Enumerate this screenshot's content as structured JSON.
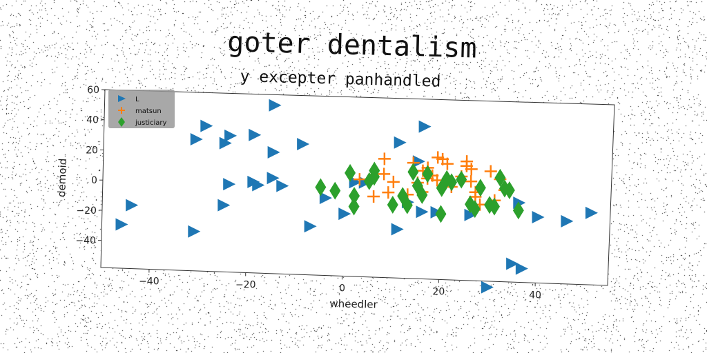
{
  "chart_data": {
    "type": "scatter",
    "title": "goter dentalism",
    "subtitle": "y excepter panhandled",
    "xlabel": "wheedler",
    "ylabel": "demoid",
    "xlim": [
      -50,
      55
    ],
    "ylim": [
      -58,
      60
    ],
    "xticks": [
      -40,
      -20,
      0,
      20,
      40
    ],
    "yticks": [
      -40,
      -20,
      0,
      20,
      40,
      60
    ],
    "grid": false,
    "legend_position": "top-left",
    "series": [
      {
        "name": "L",
        "marker": "triangle-right",
        "color": "#1f77b4",
        "points": [
          [
            -46,
            -29
          ],
          [
            -44,
            -16
          ],
          [
            -31,
            29
          ],
          [
            -31,
            -32
          ],
          [
            -29,
            38
          ],
          [
            -25,
            27
          ],
          [
            -24,
            32
          ],
          [
            -25,
            -14
          ],
          [
            -24,
            0
          ],
          [
            -19,
            33
          ],
          [
            -19,
            2
          ],
          [
            -18,
            0
          ],
          [
            -15,
            53
          ],
          [
            -15,
            22
          ],
          [
            -15,
            5
          ],
          [
            -13,
            0
          ],
          [
            -9,
            28
          ],
          [
            -7,
            -26
          ],
          [
            -4,
            -7
          ],
          [
            0,
            -17
          ],
          [
            2,
            4
          ],
          [
            4,
            4
          ],
          [
            11,
            -26
          ],
          [
            11,
            31
          ],
          [
            13,
            -8
          ],
          [
            15,
            19
          ],
          [
            16,
            -14
          ],
          [
            16,
            42
          ],
          [
            19,
            -14
          ],
          [
            26,
            -15
          ],
          [
            30,
            -62
          ],
          [
            35,
            -46
          ],
          [
            37,
            -49
          ],
          [
            36,
            -6
          ],
          [
            40,
            -15
          ],
          [
            46,
            -17
          ],
          [
            51,
            -11
          ]
        ]
      },
      {
        "name": "matsun",
        "marker": "plus",
        "color": "#ff7f0e",
        "points": [
          [
            3,
            6
          ],
          [
            6,
            -5
          ],
          [
            8,
            10
          ],
          [
            8,
            20
          ],
          [
            9,
            -2
          ],
          [
            10,
            5
          ],
          [
            13,
            -3
          ],
          [
            14,
            18
          ],
          [
            15,
            5
          ],
          [
            16,
            13
          ],
          [
            16,
            -1
          ],
          [
            17,
            8
          ],
          [
            17,
            15
          ],
          [
            18,
            10
          ],
          [
            19,
            7
          ],
          [
            19,
            22
          ],
          [
            20,
            21
          ],
          [
            21,
            18
          ],
          [
            22,
            3
          ],
          [
            24,
            10
          ],
          [
            25,
            20
          ],
          [
            25,
            17
          ],
          [
            26,
            15
          ],
          [
            26,
            7
          ],
          [
            27,
            0
          ],
          [
            27,
            -3
          ],
          [
            28,
            -8
          ],
          [
            30,
            14
          ],
          [
            31,
            -5
          ],
          [
            32,
            9
          ],
          [
            33,
            2
          ]
        ]
      },
      {
        "name": "justiciary",
        "marker": "diamond",
        "color": "#2ca02c",
        "points": [
          [
            -5,
            0
          ],
          [
            -2,
            -2
          ],
          [
            1,
            10
          ],
          [
            2,
            -5
          ],
          [
            2,
            -12
          ],
          [
            5,
            5
          ],
          [
            6,
            8
          ],
          [
            6,
            12
          ],
          [
            10,
            -10
          ],
          [
            12,
            -4
          ],
          [
            13,
            -10
          ],
          [
            14,
            12
          ],
          [
            15,
            3
          ],
          [
            16,
            -3
          ],
          [
            17,
            11
          ],
          [
            20,
            2
          ],
          [
            20,
            -15
          ],
          [
            21,
            8
          ],
          [
            22,
            6
          ],
          [
            24,
            8
          ],
          [
            26,
            -8
          ],
          [
            27,
            -11
          ],
          [
            28,
            3
          ],
          [
            30,
            -8
          ],
          [
            31,
            -9
          ],
          [
            32,
            10
          ],
          [
            33,
            3
          ],
          [
            34,
            2
          ],
          [
            36,
            -11
          ]
        ]
      }
    ]
  }
}
